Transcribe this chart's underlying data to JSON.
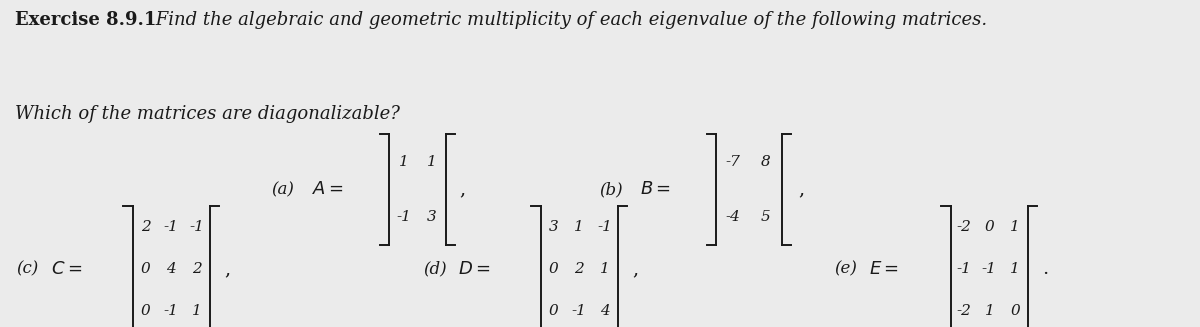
{
  "background_color": "#ebebeb",
  "figsize": [
    12.0,
    3.27
  ],
  "dpi": 100,
  "text_color": "#1a1a1a",
  "title_bold": "Exercise 8.9.1",
  "title_rest": " Find the algebraic and geometric multiplicity of each eigenvalue of the following matrices.",
  "subtitle": "Which of the matrices are diagonalizable?",
  "font_size_title": 13,
  "font_size_math": 13
}
